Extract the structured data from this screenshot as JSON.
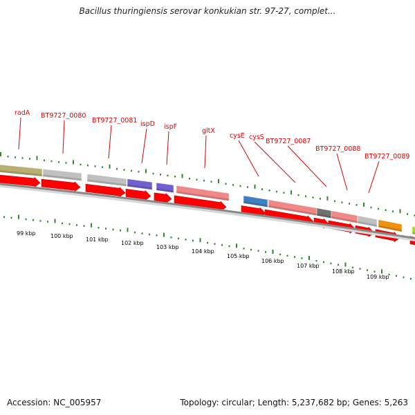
{
  "title": "Bacillus thuringiensis serovar konkukian str. 97-27, complet...",
  "footer": {
    "accession": "Accession: NC_005957",
    "summary": "Topology: circular; Length: 5,237,682 bp; Genes: 5,263"
  },
  "gene_labels": [
    "radA",
    "BT9727_0080",
    "BT9727_0081",
    "ispD",
    "ispF",
    "gltX",
    "cysE",
    "cysS",
    "BT9727_0087",
    "BT9727_0088",
    "BT9727_0089"
  ],
  "kbp_labels": [
    "99 kbp",
    "100 kbp",
    "101 kbp",
    "102 kbp",
    "103 kbp",
    "104 kbp",
    "105 kbp",
    "106 kbp",
    "107 kbp",
    "108 kbp",
    "109 kbp"
  ],
  "colors": {
    "label": "#dd0000",
    "tick": "#2a8a2a",
    "backbone": "#8c8c8c",
    "arrow": "#ff0000",
    "olive": "#b8b070",
    "gray": "#c0c0c0",
    "purple": "#7060d0",
    "pink": "#f08888",
    "blue": "#4080c0",
    "darkgray": "#707070",
    "orange": "#f09010",
    "lime": "#a0e020"
  }
}
